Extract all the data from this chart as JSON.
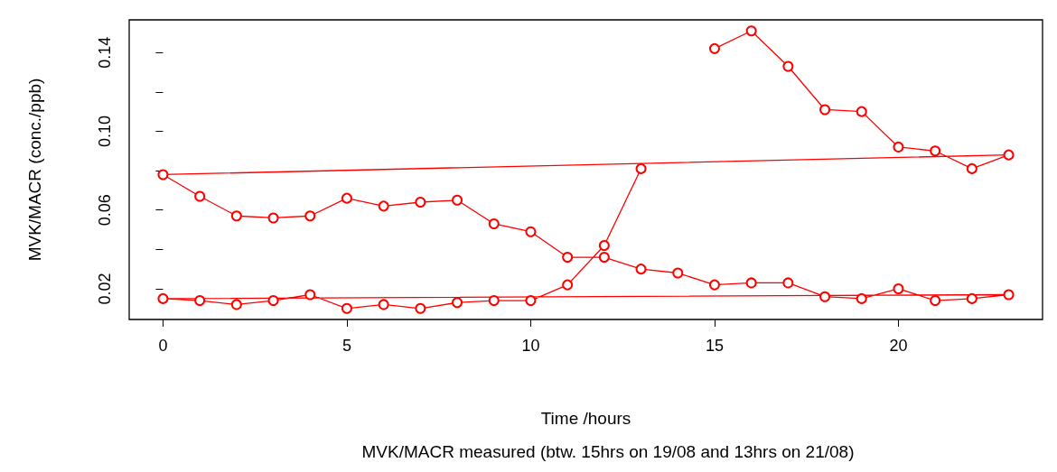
{
  "chart_data": {
    "type": "line",
    "xlabel": "Time /hours",
    "ylabel": "MVK/MACR (conc./ppb)",
    "subtitle": "MVK/MACR measured (btw. 15hrs on 19/08 and 13hrs on 21/08)",
    "x": [
      15,
      16,
      17,
      18,
      19,
      20,
      21,
      22,
      23,
      0,
      1,
      2,
      3,
      4,
      5,
      6,
      7,
      8,
      9,
      10,
      11,
      12,
      13,
      14,
      15,
      16,
      17,
      18,
      19,
      20,
      21,
      22,
      23,
      0,
      1,
      2,
      3,
      4,
      5,
      6,
      7,
      8,
      9,
      10,
      11,
      12,
      13
    ],
    "series": [
      {
        "color": "#ff0000",
        "values": [
          0.142,
          0.151,
          0.133,
          0.111,
          0.11,
          0.092,
          0.09,
          0.081,
          0.088,
          0.078,
          0.067,
          0.057,
          0.056,
          0.057,
          0.066,
          0.062,
          0.064,
          0.065,
          0.053,
          0.049,
          0.036,
          0.036,
          0.03,
          0.028,
          0.022,
          0.023,
          0.023,
          0.016,
          0.015,
          0.02,
          0.014,
          0.015,
          0.017,
          0.015,
          0.014,
          0.012,
          0.014,
          0.017,
          0.01,
          0.012,
          0.01,
          0.013,
          0.014,
          0.014,
          0.022,
          0.042,
          0.081
        ]
      }
    ],
    "xlim": [
      -0.92,
      23.92
    ],
    "xticks": [
      0,
      5,
      10,
      15,
      20
    ],
    "ylim": [
      0.0044,
      0.1566
    ],
    "yticks": [
      0.02,
      {
        "value": 0.04,
        "label": null
      },
      0.06,
      {
        "value": 0.08,
        "label": null
      },
      {
        "value": 0.1,
        "label": "0.10"
      },
      {
        "value": 0.12,
        "label": null
      },
      0.14
    ],
    "marker": "circle",
    "line_style": "solid",
    "grid": false
  }
}
